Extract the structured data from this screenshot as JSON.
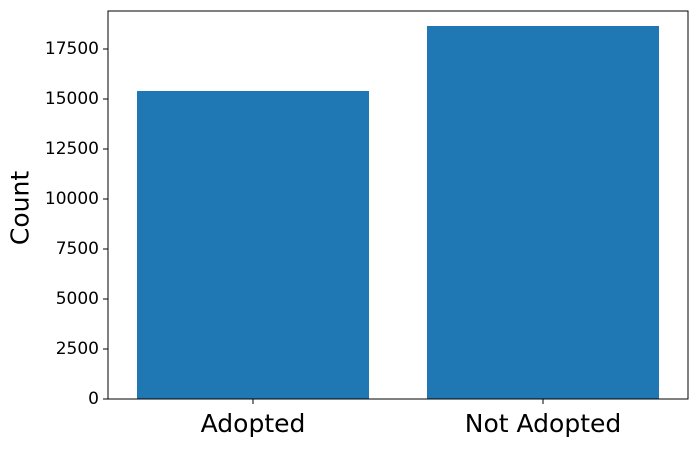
{
  "chart_data": {
    "type": "bar",
    "categories": [
      "Adopted",
      "Not Adopted"
    ],
    "values": [
      15400,
      18650
    ],
    "title": "",
    "xlabel": "",
    "ylabel": "Count",
    "ylim": [
      0,
      19400
    ],
    "yticks": [
      0,
      2500,
      5000,
      7500,
      10000,
      12500,
      15000,
      17500
    ],
    "ytick_labels": [
      "0",
      "2500",
      "5000",
      "7500",
      "10000",
      "12500",
      "15000",
      "17500"
    ],
    "grid": false,
    "legend": "none",
    "bar_color": "#1f77b4"
  }
}
